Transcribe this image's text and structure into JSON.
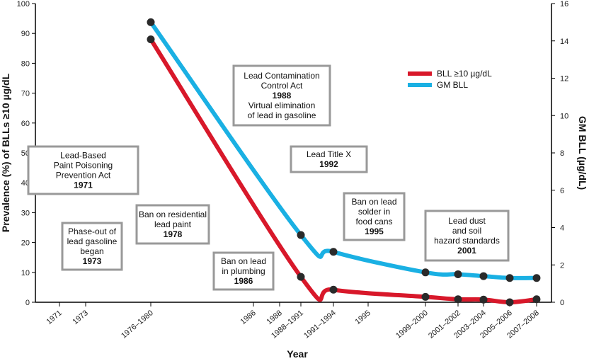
{
  "chart_data": {
    "type": "line",
    "xlabel": "Year",
    "ylabel_left": "Prevalence (%) of BLLs ≥10 µg/dL",
    "ylabel_right": "GM BLL (µg/dL)",
    "ylim_left": [
      0,
      100
    ],
    "ylim_right": [
      0,
      16
    ],
    "yticks_left": [
      0,
      10,
      20,
      30,
      40,
      50,
      60,
      70,
      80,
      90,
      100
    ],
    "yticks_right": [
      0,
      2,
      4,
      6,
      8,
      10,
      12,
      14,
      16
    ],
    "xticks": [
      {
        "label": "1971",
        "year": 1971
      },
      {
        "label": "1973",
        "year": 1973
      },
      {
        "label": "1976–1980",
        "year": 1978
      },
      {
        "label": "1986",
        "year": 1986
      },
      {
        "label": "1988",
        "year": 1988
      },
      {
        "label": "1988–1991",
        "year": 1989.5
      },
      {
        "label": "1991–1994",
        "year": 1992.5
      },
      {
        "label": "1995",
        "year": 1995
      },
      {
        "label": "1999–2000",
        "year": 1999.5
      },
      {
        "label": "2001–2002",
        "year": 2001.5
      },
      {
        "label": "2003–2004",
        "year": 2003.5
      },
      {
        "label": "2005–2006",
        "year": 2005.5
      },
      {
        "label": "2007–2008",
        "year": 2007.5
      }
    ],
    "legend_position": "top-right",
    "series": [
      {
        "name": "BLL ≥10 µg/dL",
        "axis": "left",
        "color": "#d8182a",
        "x": [
          "1976–1980",
          "1988–1991",
          "1991–1994",
          "1999–2000",
          "2001–2002",
          "2003–2004",
          "2005–2006",
          "2007–2008"
        ],
        "values": [
          88.0,
          8.5,
          4.2,
          1.8,
          1.0,
          0.9,
          0.0,
          1.0
        ]
      },
      {
        "name": "GM BLL",
        "axis": "right",
        "color": "#1ab0e3",
        "x": [
          "1976–1980",
          "1988–1991",
          "1991–1994",
          "1999–2000",
          "2001–2002",
          "2003–2004",
          "2005–2006",
          "2007–2008"
        ],
        "values": [
          15.0,
          3.6,
          2.7,
          1.6,
          1.5,
          1.4,
          1.3,
          1.3
        ]
      }
    ],
    "annotations": [
      {
        "lines": [
          "Lead-Based",
          "Paint Poisoning",
          "Prevention Act"
        ],
        "year": "1971"
      },
      {
        "lines": [
          "Phase-out of",
          "lead gasoline",
          "began"
        ],
        "year": "1973"
      },
      {
        "lines": [
          "Ban on residential",
          "lead paint"
        ],
        "year": "1978"
      },
      {
        "lines": [
          "Ban on lead",
          "in plumbing"
        ],
        "year": "1986"
      },
      {
        "lines": [
          "Lead Contamination",
          "Control Act"
        ],
        "year": "1988",
        "after": [
          "Virtual elimination",
          "of lead in gasoline"
        ]
      },
      {
        "lines": [
          "Lead Title X"
        ],
        "year": "1992"
      },
      {
        "lines": [
          "Ban on lead",
          "solder in",
          "food cans"
        ],
        "year": "1995"
      },
      {
        "lines": [
          "Lead dust",
          "and soil",
          "hazard standards"
        ],
        "year": "2001"
      }
    ]
  }
}
